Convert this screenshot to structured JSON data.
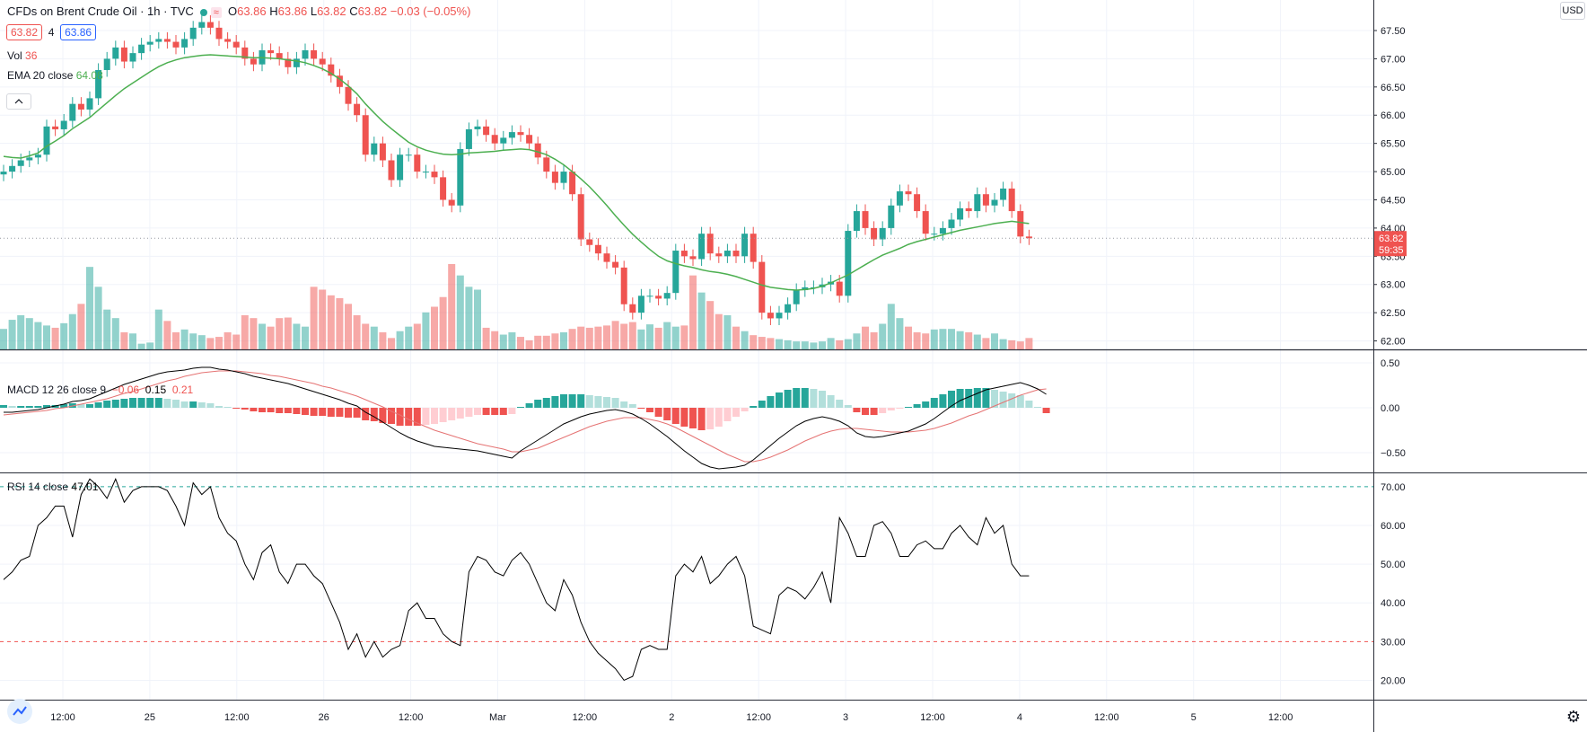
{
  "header": {
    "symbol_title": "CFDs on Brent Crude Oil · 1h · TVC",
    "open_label": "O",
    "open": "63.86",
    "high_label": "H",
    "high": "63.86",
    "low_label": "L",
    "low": "63.82",
    "close_label": "C",
    "close": "63.82",
    "change": "−0.03 (−0.05%)",
    "sell_price": "63.82",
    "spread": "4",
    "buy_price": "63.86"
  },
  "indicators": {
    "vol_label": "Vol",
    "vol_value": "36",
    "ema_label": "EMA 20 close",
    "ema_value": "64.08",
    "macd_label": "MACD 12 26 close 9",
    "macd_hist": "−0.06",
    "macd_line": "0.15",
    "macd_signal": "0.21",
    "rsi_label": "RSI 14 close",
    "rsi_value": "47.01"
  },
  "price_axis": {
    "currency": "USD",
    "labels": [
      "67.50",
      "67.00",
      "66.50",
      "66.00",
      "65.50",
      "65.00",
      "64.50",
      "64.00",
      "63.50",
      "63.00",
      "62.50",
      "62.00"
    ],
    "current_price": "63.82",
    "countdown": "59:35"
  },
  "macd_axis": {
    "labels": [
      "0.50",
      "0.00",
      "−0.50"
    ]
  },
  "rsi_axis": {
    "labels": [
      "70.00",
      "60.00",
      "50.00",
      "40.00",
      "30.00",
      "20.00"
    ]
  },
  "time_axis": {
    "labels": [
      "12:00",
      "25",
      "12:00",
      "26",
      "12:00",
      "Mar",
      "12:00",
      "2",
      "12:00",
      "3",
      "12:00",
      "4",
      "12:00",
      "5",
      "12:00"
    ]
  },
  "icons": {
    "settings": "gear-icon",
    "logo": "tradingview-logo-icon",
    "collapse": "chevron-up-icon"
  },
  "colors": {
    "up": "#26a69a",
    "down": "#ef5350",
    "ema": "#4caf50",
    "macd": "#000000",
    "signal": "#e57373",
    "grid": "#f0f3fa"
  },
  "chart_data": [
    {
      "type": "candlestick",
      "title": "CFDs on Brent Crude Oil · 1h · TVC",
      "ylim": [
        61.85,
        67.85
      ],
      "x_ticks": [
        "12:00",
        "25",
        "12:00",
        "26",
        "12:00",
        "Mar",
        "12:00",
        "2",
        "12:00",
        "3",
        "12:00",
        "4",
        "12:00",
        "5",
        "12:00"
      ],
      "close": [
        65.0,
        65.1,
        65.2,
        65.25,
        65.3,
        65.8,
        65.75,
        65.9,
        66.2,
        66.1,
        66.3,
        66.8,
        67.0,
        67.2,
        66.95,
        67.1,
        67.25,
        67.3,
        67.35,
        67.3,
        67.2,
        67.35,
        67.55,
        67.65,
        67.55,
        67.35,
        67.3,
        67.2,
        67.0,
        66.9,
        67.15,
        67.1,
        67.0,
        66.85,
        67.0,
        67.15,
        67.0,
        66.9,
        66.7,
        66.5,
        66.2,
        66.0,
        65.3,
        65.5,
        65.2,
        64.85,
        65.3,
        65.3,
        65.0,
        65.0,
        64.9,
        64.5,
        64.4,
        65.4,
        65.75,
        65.8,
        65.65,
        65.5,
        65.6,
        65.7,
        65.65,
        65.5,
        65.25,
        65.0,
        64.8,
        65.0,
        64.6,
        63.8,
        63.7,
        63.55,
        63.4,
        63.3,
        62.65,
        62.5,
        62.8,
        62.8,
        62.75,
        62.85,
        63.6,
        63.5,
        63.45,
        63.9,
        63.55,
        63.5,
        63.6,
        63.5,
        63.9,
        63.4,
        62.5,
        62.4,
        62.5,
        62.65,
        62.9,
        62.95,
        62.95,
        63.0,
        63.05,
        62.8,
        63.95,
        64.3,
        64.0,
        63.8,
        64.0,
        64.4,
        64.65,
        64.6,
        64.3,
        63.9,
        63.9,
        64.0,
        64.15,
        64.35,
        64.3,
        64.6,
        64.4,
        64.5,
        64.7,
        64.3,
        63.85,
        63.82
      ],
      "series": [
        {
          "name": "EMA 20 close",
          "values": [
            65.27,
            65.25,
            65.24,
            65.28,
            65.33,
            65.45,
            65.54,
            65.64,
            65.76,
            65.86,
            65.96,
            66.09,
            66.22,
            66.35,
            66.47,
            66.57,
            66.67,
            66.77,
            66.86,
            66.93,
            66.98,
            67.02,
            67.04,
            67.06,
            67.07,
            67.06,
            67.05,
            67.04,
            67.03,
            67.02,
            67.02,
            67.01,
            67.0,
            66.98,
            66.96,
            66.93,
            66.88,
            66.82,
            66.74,
            66.64,
            66.52,
            66.38,
            66.2,
            66.04,
            65.89,
            65.76,
            65.64,
            65.52,
            65.44,
            65.38,
            65.34,
            65.31,
            65.3,
            65.31,
            65.33,
            65.34,
            65.35,
            65.36,
            65.38,
            65.39,
            65.4,
            65.39,
            65.35,
            65.3,
            65.22,
            65.12,
            65.0,
            64.87,
            64.73,
            64.57,
            64.4,
            64.22,
            64.05,
            63.89,
            63.75,
            63.62,
            63.5,
            63.42,
            63.37,
            63.33,
            63.3,
            63.26,
            63.23,
            63.21,
            63.18,
            63.14,
            63.09,
            63.04,
            62.99,
            62.95,
            62.93,
            62.91,
            62.9,
            62.91,
            62.93,
            62.97,
            63.03,
            63.1,
            63.17,
            63.26,
            63.35,
            63.44,
            63.52,
            63.58,
            63.64,
            63.71,
            63.76,
            63.8,
            63.84,
            63.88,
            63.92,
            63.96,
            63.99,
            64.02,
            64.05,
            64.08,
            64.1,
            64.12,
            64.1,
            64.08
          ]
        },
        {
          "name": "Vol",
          "values": [
            36,
            52,
            60,
            55,
            48,
            42,
            38,
            46,
            62,
            80,
            145,
            110,
            70,
            55,
            30,
            28,
            10,
            12,
            70,
            50,
            30,
            35,
            28,
            25,
            20,
            22,
            30,
            26,
            60,
            55,
            45,
            40,
            55,
            56,
            45,
            40,
            110,
            105,
            95,
            90,
            80,
            60,
            45,
            40,
            30,
            20,
            32,
            40,
            45,
            65,
            75,
            92,
            150,
            130,
            110,
            105,
            38,
            32,
            26,
            30,
            22,
            16,
            24,
            24,
            28,
            30,
            36,
            40,
            38,
            40,
            42,
            50,
            45,
            48,
            35,
            44,
            38,
            48,
            40,
            42,
            130,
            100,
            85,
            62,
            60,
            40,
            32,
            25,
            22,
            20,
            18,
            16,
            14,
            14,
            12,
            14,
            20,
            16,
            18,
            28,
            40,
            30,
            45,
            80,
            55,
            40,
            30,
            28,
            35,
            36,
            36,
            32,
            30,
            26,
            20,
            28,
            18,
            16,
            14,
            20,
            24,
            50,
            36
          ]
        }
      ]
    },
    {
      "type": "line",
      "title": "MACD 12 26 close 9",
      "ylim": [
        -0.72,
        0.62
      ],
      "series": [
        {
          "name": "MACD",
          "values": [
            -0.05,
            -0.05,
            -0.04,
            -0.03,
            -0.02,
            0.0,
            0.02,
            0.04,
            0.07,
            0.08,
            0.1,
            0.14,
            0.18,
            0.22,
            0.26,
            0.29,
            0.32,
            0.35,
            0.38,
            0.4,
            0.41,
            0.42,
            0.44,
            0.45,
            0.45,
            0.43,
            0.42,
            0.4,
            0.38,
            0.35,
            0.33,
            0.31,
            0.29,
            0.27,
            0.24,
            0.21,
            0.18,
            0.15,
            0.12,
            0.09,
            0.05,
            0.02,
            -0.05,
            -0.1,
            -0.16,
            -0.22,
            -0.28,
            -0.33,
            -0.37,
            -0.4,
            -0.43,
            -0.44,
            -0.45,
            -0.46,
            -0.47,
            -0.48,
            -0.5,
            -0.52,
            -0.54,
            -0.56,
            -0.48,
            -0.42,
            -0.36,
            -0.3,
            -0.24,
            -0.18,
            -0.14,
            -0.1,
            -0.07,
            -0.05,
            -0.03,
            -0.02,
            -0.04,
            -0.07,
            -0.12,
            -0.18,
            -0.25,
            -0.32,
            -0.4,
            -0.48,
            -0.55,
            -0.62,
            -0.66,
            -0.68,
            -0.67,
            -0.66,
            -0.64,
            -0.58,
            -0.5,
            -0.42,
            -0.34,
            -0.27,
            -0.2,
            -0.15,
            -0.12,
            -0.1,
            -0.12,
            -0.15,
            -0.2,
            -0.28,
            -0.32,
            -0.33,
            -0.32,
            -0.3,
            -0.28,
            -0.26,
            -0.22,
            -0.18,
            -0.12,
            -0.05,
            0.02,
            0.08,
            0.12,
            0.16,
            0.2,
            0.22,
            0.24,
            0.26,
            0.28,
            0.25,
            0.21,
            0.15
          ]
        },
        {
          "name": "Signal",
          "values": [
            -0.08,
            -0.07,
            -0.06,
            -0.05,
            -0.04,
            -0.03,
            -0.01,
            0.0,
            0.02,
            0.04,
            0.06,
            0.08,
            0.1,
            0.13,
            0.16,
            0.18,
            0.21,
            0.24,
            0.27,
            0.3,
            0.32,
            0.35,
            0.37,
            0.39,
            0.4,
            0.41,
            0.41,
            0.41,
            0.4,
            0.39,
            0.38,
            0.36,
            0.35,
            0.33,
            0.31,
            0.29,
            0.27,
            0.24,
            0.22,
            0.19,
            0.16,
            0.13,
            0.09,
            0.05,
            0.01,
            -0.04,
            -0.08,
            -0.13,
            -0.17,
            -0.21,
            -0.25,
            -0.28,
            -0.31,
            -0.34,
            -0.37,
            -0.4,
            -0.42,
            -0.44,
            -0.46,
            -0.49,
            -0.49,
            -0.47,
            -0.45,
            -0.41,
            -0.37,
            -0.33,
            -0.29,
            -0.25,
            -0.21,
            -0.18,
            -0.15,
            -0.13,
            -0.11,
            -0.11,
            -0.11,
            -0.13,
            -0.15,
            -0.18,
            -0.22,
            -0.27,
            -0.32,
            -0.37,
            -0.42,
            -0.47,
            -0.52,
            -0.56,
            -0.6,
            -0.6,
            -0.58,
            -0.55,
            -0.51,
            -0.47,
            -0.42,
            -0.37,
            -0.33,
            -0.29,
            -0.26,
            -0.24,
            -0.23,
            -0.23,
            -0.24,
            -0.25,
            -0.26,
            -0.27,
            -0.27,
            -0.27,
            -0.26,
            -0.25,
            -0.23,
            -0.2,
            -0.17,
            -0.13,
            -0.09,
            -0.06,
            -0.02,
            0.02,
            0.06,
            0.1,
            0.14,
            0.17,
            0.2,
            0.21
          ]
        },
        {
          "name": "Histogram",
          "values": [
            0.03,
            0.02,
            0.02,
            0.02,
            0.02,
            0.03,
            0.03,
            0.04,
            0.05,
            0.04,
            0.04,
            0.06,
            0.08,
            0.09,
            0.1,
            0.11,
            0.11,
            0.11,
            0.11,
            0.1,
            0.09,
            0.07,
            0.07,
            0.06,
            0.05,
            0.02,
            0.01,
            -0.01,
            -0.02,
            -0.04,
            -0.05,
            -0.05,
            -0.06,
            -0.06,
            -0.07,
            -0.08,
            -0.09,
            -0.09,
            -0.1,
            -0.1,
            -0.11,
            -0.11,
            -0.14,
            -0.15,
            -0.17,
            -0.18,
            -0.2,
            -0.2,
            -0.2,
            -0.19,
            -0.18,
            -0.16,
            -0.14,
            -0.12,
            -0.1,
            -0.08,
            -0.08,
            -0.08,
            -0.08,
            -0.07,
            0.01,
            0.05,
            0.09,
            0.11,
            0.13,
            0.15,
            0.15,
            0.15,
            0.14,
            0.13,
            0.12,
            0.11,
            0.07,
            0.04,
            -0.01,
            -0.05,
            -0.1,
            -0.14,
            -0.18,
            -0.21,
            -0.23,
            -0.25,
            -0.24,
            -0.21,
            -0.15,
            -0.1,
            -0.04,
            0.02,
            0.08,
            0.13,
            0.17,
            0.2,
            0.22,
            0.22,
            0.21,
            0.19,
            0.14,
            0.09,
            0.03,
            -0.05,
            -0.08,
            -0.08,
            -0.06,
            -0.03,
            -0.01,
            0.01,
            0.04,
            0.07,
            0.11,
            0.15,
            0.19,
            0.21,
            0.21,
            0.22,
            0.22,
            0.2,
            0.18,
            0.16,
            0.14,
            0.08,
            0.01,
            -0.06
          ]
        }
      ]
    },
    {
      "type": "line",
      "title": "RSI 14 close",
      "ylim": [
        15,
        73
      ],
      "bands": [
        30,
        70
      ],
      "series": [
        {
          "name": "RSI",
          "values": [
            46,
            48,
            51,
            52,
            60,
            62,
            65,
            65,
            57,
            68,
            72,
            70,
            67,
            72,
            66,
            69,
            70,
            70,
            70,
            69,
            65,
            60,
            71,
            68,
            70,
            62,
            58,
            56,
            50,
            46,
            53,
            55,
            48,
            45,
            50,
            50,
            47,
            45,
            40,
            35,
            28,
            32,
            26,
            30,
            26,
            28,
            29,
            38,
            40,
            36,
            36,
            32,
            30,
            29,
            48,
            52,
            51,
            48,
            47,
            51,
            53,
            50,
            45,
            40,
            38,
            46,
            42,
            35,
            30,
            27,
            25,
            23,
            20,
            21,
            28,
            29,
            28,
            28,
            47,
            50,
            48,
            52,
            45,
            47,
            50,
            52,
            47,
            34,
            33,
            32,
            42,
            44,
            43,
            41,
            44,
            48,
            40,
            62,
            58,
            52,
            52,
            60,
            61,
            58,
            52,
            52,
            55,
            56,
            54,
            54,
            58,
            60,
            57,
            55,
            62,
            58,
            60,
            50,
            47,
            47
          ]
        }
      ]
    }
  ]
}
